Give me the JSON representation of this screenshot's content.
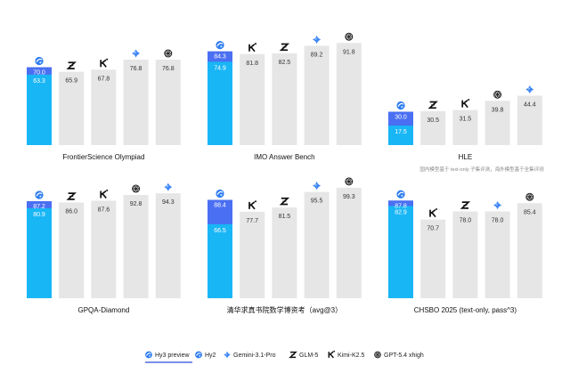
{
  "colors": {
    "hy3_preview": "#4a6ff2",
    "hy2": "#19b6f5",
    "other": "#e6e6e6",
    "label_dark": "#333333",
    "label_light": "#ffffff",
    "underline": "#2d4bd6"
  },
  "legend": [
    {
      "key": "hy3_preview",
      "label": "Hy3 preview",
      "icon": "hunyuan-icon"
    },
    {
      "key": "hy2",
      "label": "Hy2",
      "icon": "hunyuan-icon"
    },
    {
      "key": "gemini",
      "label": "Gemini-3.1-Pro",
      "icon": "gemini-icon"
    },
    {
      "key": "glm",
      "label": "GLM-5",
      "icon": "zhipu-z-icon"
    },
    {
      "key": "kimi",
      "label": "Kimi-K2.5",
      "icon": "kimi-k-icon"
    },
    {
      "key": "gpt",
      "label": "GPT-5.4 xhigh",
      "icon": "openai-icon"
    }
  ],
  "note": "国内模型基于 text-only 子集评测，海外模型基于全集评测",
  "chart_data": [
    {
      "type": "bar",
      "title": "FrontierScience Olympiad",
      "ylim": [
        0,
        100
      ],
      "hy3_preview": 70.0,
      "hy2": 63.3,
      "others": [
        {
          "model": "glm",
          "icon": "zhipu-z-icon",
          "value": 65.9
        },
        {
          "model": "kimi",
          "icon": "kimi-k-icon",
          "value": 67.8
        },
        {
          "model": "gemini",
          "icon": "gemini-icon",
          "value": 76.8
        },
        {
          "model": "gpt",
          "icon": "openai-icon",
          "value": 76.8
        }
      ]
    },
    {
      "type": "bar",
      "title": "IMO Answer Bench",
      "ylim": [
        0,
        100
      ],
      "hy3_preview": 84.3,
      "hy2": 74.9,
      "others": [
        {
          "model": "kimi",
          "icon": "kimi-k-icon",
          "value": 81.8
        },
        {
          "model": "glm",
          "icon": "zhipu-z-icon",
          "value": 82.5
        },
        {
          "model": "gemini",
          "icon": "gemini-icon",
          "value": 89.2
        },
        {
          "model": "gpt",
          "icon": "openai-icon",
          "value": 91.8
        }
      ]
    },
    {
      "type": "bar",
      "title": "HLE",
      "ylim": [
        0,
        100
      ],
      "hy3_preview": 30.0,
      "hy2": 17.5,
      "others": [
        {
          "model": "glm",
          "icon": "zhipu-z-icon",
          "value": 30.5
        },
        {
          "model": "kimi",
          "icon": "kimi-k-icon",
          "value": 31.5
        },
        {
          "model": "gpt",
          "icon": "openai-icon",
          "value": 39.8
        },
        {
          "model": "gemini",
          "icon": "gemini-icon",
          "value": 44.4
        }
      ]
    },
    {
      "type": "bar",
      "title": "GPQA-Diamond",
      "ylim": [
        0,
        100
      ],
      "hy3_preview": 87.2,
      "hy2": 80.9,
      "others": [
        {
          "model": "glm",
          "icon": "zhipu-z-icon",
          "value": 86.0
        },
        {
          "model": "kimi",
          "icon": "kimi-k-icon",
          "value": 87.6
        },
        {
          "model": "gpt",
          "icon": "openai-icon",
          "value": 92.8
        },
        {
          "model": "gemini",
          "icon": "gemini-icon",
          "value": 94.3
        }
      ]
    },
    {
      "type": "bar",
      "title": "清华求真书院数学博资考（avg@3）",
      "ylim": [
        0,
        100
      ],
      "hy3_preview": 88.4,
      "hy2": 66.5,
      "others": [
        {
          "model": "kimi",
          "icon": "kimi-k-icon",
          "value": 77.7
        },
        {
          "model": "glm",
          "icon": "zhipu-z-icon",
          "value": 81.5
        },
        {
          "model": "gemini",
          "icon": "gemini-icon",
          "value": 95.5
        },
        {
          "model": "gpt",
          "icon": "openai-icon",
          "value": 99.3
        }
      ]
    },
    {
      "type": "bar",
      "title": "CHSBO 2025 (text-only, pass^3)",
      "ylim": [
        0,
        100
      ],
      "hy3_preview": 87.8,
      "hy2": 82.9,
      "others": [
        {
          "model": "kimi",
          "icon": "kimi-k-icon",
          "value": 70.7
        },
        {
          "model": "glm",
          "icon": "zhipu-z-icon",
          "value": 78.0
        },
        {
          "model": "gemini",
          "icon": "gemini-icon",
          "value": 78.0
        },
        {
          "model": "gpt",
          "icon": "openai-icon",
          "value": 85.4
        }
      ]
    }
  ]
}
